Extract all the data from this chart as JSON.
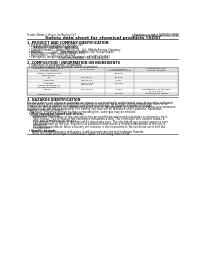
{
  "bg_color": "#ffffff",
  "header_left": "Product Name: Lithium Ion Battery Cell",
  "header_right_1": "Substance number: SBN-083-00010",
  "header_right_2": "Establishment / Revision: Dec.1.2010",
  "title": "Safety data sheet for chemical products (SDS)",
  "section1_title": "1. PRODUCT AND COMPANY IDENTIFICATION",
  "section1_lines": [
    "  • Product name: Lithium Ion Battery Cell",
    "  • Product code: Cylindrical-type cell",
    "       INR18650J, INR18650L, INR18650A",
    "  • Company name:    Sanyo Electric Co., Ltd.  Mobile Energy Company",
    "  • Address:           2001  Kamimanzai, Sumoto-City, Hyogo, Japan",
    "  • Telephone number:    +81-(799)-20-4111",
    "  • Fax number:   +81-(799)-26-4129",
    "  • Emergency telephone number (daytime): +81-799-26-3962",
    "                                    (Night and holiday) +81-799-26-4131"
  ],
  "section2_title": "2. COMPOSITION / INFORMATION ON INGREDIENTS",
  "section2_intro": "  • Substance or preparation: Preparation",
  "section2_sub": "  • information about the chemical nature of product:",
  "table_col1_top": "Chemical chemical name /",
  "table_col1_bot": "Several names",
  "table_col2": "CAS number",
  "table_col3_top": "Concentration /",
  "table_col3_bot": "Concentration range",
  "table_col4_top": "Classification and",
  "table_col4_bot": "hazard labeling",
  "table_rows": [
    [
      "Lithium cobalt oxide\n(LiMnCoO2)",
      "-",
      "30-60%",
      "-"
    ],
    [
      "Iron",
      "7439-89-6",
      "10-20%",
      "-"
    ],
    [
      "Aluminum",
      "7429-90-5",
      "2-6%",
      "-"
    ],
    [
      "Graphite\n(Mixed graphite-1)\n(All-the graphite-1)",
      "77662-62-5\n7782-42-5",
      "10-23%",
      "-"
    ],
    [
      "Copper",
      "7440-50-8",
      "5-15%",
      "Sensitization of the skin\ngroup No.2"
    ],
    [
      "Organic electrolyte",
      "-",
      "10-20%",
      "Inflammable liquid"
    ]
  ],
  "section3_title": "3. HAZARDS IDENTIFICATION",
  "section3_lines": [
    "For this battery cell, chemical materials are stored in a hermetically sealed metal case, designed to withstand",
    "temperatures up to absolute-specifications during normal use. As a result, during normal use, there is no",
    "physical danger of ignition or explosion and there is no danger of hazardous material leakage.",
    "   However, if exposed to a fire, added mechanical shocks, decomposed, or short-circuits without any measures,",
    "the gas inside can not be operated. The battery cell case will be breached at fire patterns. hazardous",
    "materials may be released.",
    "   Moreover, if heated strongly by the surrounding fire, some gas may be emitted."
  ],
  "section3_hazard": "  • Most important hazard and effects:",
  "section3_human": "    Human health effects:",
  "section3_human_lines": [
    "       Inhalation: The release of the electrolyte has an anesthesia action and stimulates a respiratory tract.",
    "       Skin contact: The release of the electrolyte stimulates a skin. The electrolyte skin contact causes a",
    "       sore and stimulation on the skin.",
    "       Eye contact: The release of the electrolyte stimulates eyes. The electrolyte eye contact causes a sore",
    "       and stimulation on the eye. Especially, a substance that causes a strong inflammation of the eye is",
    "       contained.",
    "       Environmental effects: Since a battery cell remains in the environment, do not throw out it into the",
    "       environment."
  ],
  "section3_specific": "  • Specific hazards:",
  "section3_specific_lines": [
    "      If the electrolyte contacts with water, it will generate detrimental hydrogen fluoride.",
    "      Since the used electrolyte is inflammable liquid, do not bring close to fire."
  ],
  "font_color": "#111111",
  "line_color": "#333333",
  "table_border_color": "#888888",
  "table_header_bg": "#dddddd"
}
